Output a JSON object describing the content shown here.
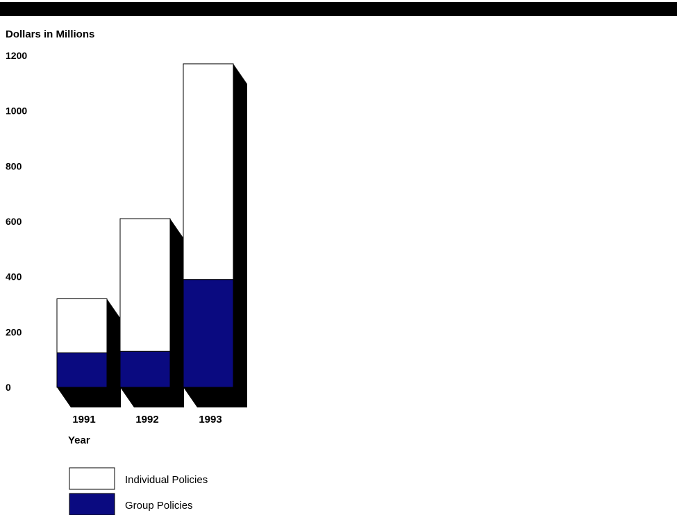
{
  "chart_data": {
    "type": "bar",
    "stacked": true,
    "categories": [
      "1991",
      "1992",
      "1993"
    ],
    "series": [
      {
        "name": "Group Policies",
        "values": [
          125,
          130,
          390
        ],
        "color": "#0a0a80"
      },
      {
        "name": "Individual Policies",
        "values": [
          195,
          480,
          780
        ],
        "color": "#ffffff"
      }
    ],
    "ylabel": "Dollars in Millions",
    "xlabel": "Year",
    "yticks": [
      "0",
      "200",
      "400",
      "600",
      "800",
      "1000",
      "1200"
    ],
    "ylim": [
      0,
      1200
    ],
    "grid": false,
    "legend": "bottom"
  },
  "colors": {
    "shadow": "#000000",
    "top_bar": "#000000"
  }
}
